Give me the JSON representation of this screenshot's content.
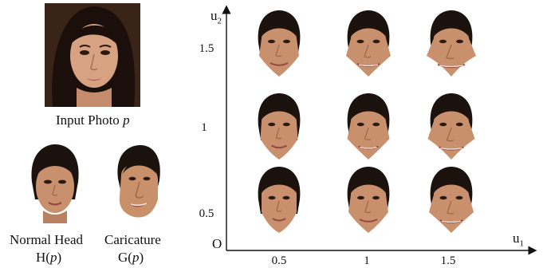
{
  "input_photo": {
    "caption_prefix": "Input Photo",
    "caption_var": "p"
  },
  "normal_head": {
    "title": "Normal Head",
    "formula_fn": "H(",
    "formula_var": "p",
    "formula_end": ")"
  },
  "caricature": {
    "title": "Caricature",
    "formula_fn": "G(",
    "formula_var": "p",
    "formula_end": ")"
  },
  "grid": {
    "x_axis_label": "u",
    "x_axis_sub": "1",
    "y_axis_label": "u",
    "y_axis_sub": "2",
    "origin_label": "O",
    "x_ticks": [
      "0.5",
      "1",
      "1.5"
    ],
    "y_ticks": [
      "1.5",
      "1",
      "0.5"
    ]
  },
  "colors": {
    "skin_normal": "#c9906e",
    "skin_caricature": "#c8916a",
    "hair": "#1b120d",
    "photo_bg": "#2a1a12"
  }
}
